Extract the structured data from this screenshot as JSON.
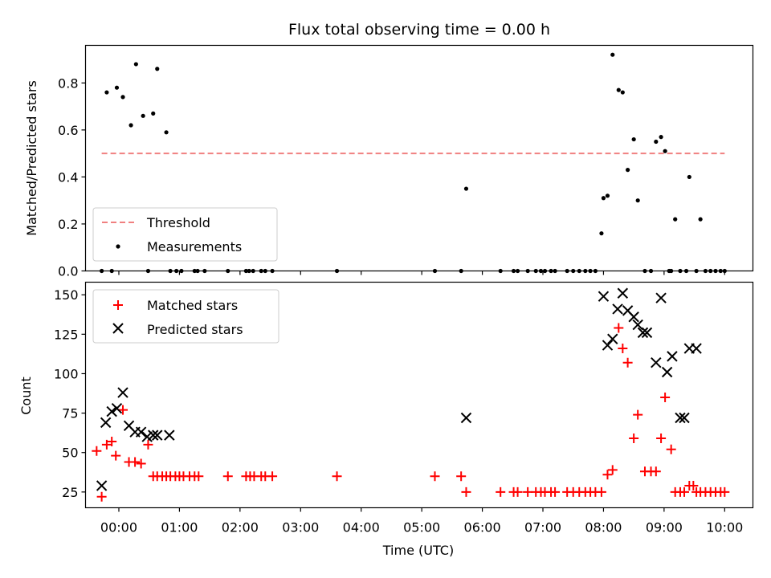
{
  "chart_data": [
    {
      "type": "scatter",
      "title": "Flux total observing time = 0.00 h",
      "xlabel": "",
      "ylabel": "Matched/Predicted stars",
      "xlim": [
        "-0:33",
        "10:28"
      ],
      "ylim": [
        0,
        0.96
      ],
      "yticks": [
        0.0,
        0.2,
        0.4,
        0.6,
        0.8
      ],
      "ytick_labels": [
        "0.0",
        "0.2",
        "0.4",
        "0.6",
        "0.8"
      ],
      "grid": false,
      "legend_position": "lower-left",
      "series": [
        {
          "name": "Threshold",
          "kind": "dashed-line",
          "color": "#f08080",
          "x": [
            "-0:17",
            "10:00"
          ],
          "y": [
            0.5,
            0.5
          ]
        },
        {
          "name": "Measurements",
          "kind": "points",
          "color": "#000000",
          "x": [
            "-0:17",
            "-0:12",
            "-0:07",
            "-0:02",
            "0:04",
            "0:12",
            "0:17",
            "0:24",
            "0:29",
            "0:34",
            "0:38",
            "0:47",
            "0:51",
            "0:57",
            "1:02",
            "1:15",
            "1:18",
            "1:25",
            "1:48",
            "2:06",
            "2:09",
            "2:13",
            "2:21",
            "2:25",
            "2:32",
            "3:36",
            "5:13",
            "5:39",
            "5:44",
            "6:18",
            "6:31",
            "6:35",
            "6:45",
            "6:53",
            "6:58",
            "7:02",
            "7:08",
            "7:12",
            "7:24",
            "7:30",
            "7:36",
            "7:42",
            "7:47",
            "7:52",
            "7:58",
            "8:00",
            "8:04",
            "8:09",
            "8:15",
            "8:19",
            "8:24",
            "8:30",
            "8:34",
            "8:41",
            "8:47",
            "8:52",
            "8:57",
            "9:01",
            "9:05",
            "9:07",
            "9:11",
            "9:16",
            "9:22",
            "9:25",
            "9:32",
            "9:36",
            "9:41",
            "9:46",
            "9:51",
            "9:56",
            "10:00"
          ],
          "y": [
            0.0,
            0.76,
            0.0,
            0.78,
            0.74,
            0.62,
            0.88,
            0.66,
            0.0,
            0.67,
            0.86,
            0.59,
            0.0,
            0.0,
            0.0,
            0.0,
            0.0,
            0.0,
            0.0,
            0.0,
            0.0,
            0.0,
            0.0,
            0.0,
            0.0,
            0.0,
            0.0,
            0.0,
            0.35,
            0.0,
            0.0,
            0.0,
            0.0,
            0.0,
            0.0,
            0.0,
            0.0,
            0.0,
            0.0,
            0.0,
            0.0,
            0.0,
            0.0,
            0.0,
            0.16,
            0.31,
            0.32,
            0.92,
            0.77,
            0.76,
            0.43,
            0.56,
            0.3,
            0.0,
            0.0,
            0.55,
            0.57,
            0.51,
            0.0,
            0.0,
            0.22,
            0.0,
            0.0,
            0.4,
            0.0,
            0.22,
            0.0,
            0.0,
            0.0,
            0.0,
            0.0
          ]
        }
      ]
    },
    {
      "type": "scatter",
      "title": "",
      "xlabel": "Time (UTC)",
      "ylabel": "Count",
      "xlim": [
        "-0:33",
        "10:28"
      ],
      "ylim": [
        15,
        158
      ],
      "yticks": [
        25,
        50,
        75,
        100,
        125,
        150
      ],
      "ytick_labels": [
        "25",
        "50",
        "75",
        "100",
        "125",
        "150"
      ],
      "xticks": [
        "0:00",
        "1:00",
        "2:00",
        "3:00",
        "4:00",
        "5:00",
        "6:00",
        "7:00",
        "8:00",
        "9:00",
        "10:00"
      ],
      "xtick_labels": [
        "00:00",
        "01:00",
        "02:00",
        "03:00",
        "04:00",
        "05:00",
        "06:00",
        "07:00",
        "08:00",
        "09:00",
        "10:00"
      ],
      "grid": false,
      "legend_position": "upper-left",
      "series": [
        {
          "name": "Matched stars",
          "marker": "plus",
          "color": "#ff0000",
          "x": [
            "-0:22",
            "-0:17",
            "-0:12",
            "-0:07",
            "-0:03",
            "0:04",
            "0:10",
            "0:16",
            "0:22",
            "0:29",
            "0:34",
            "0:38",
            "0:43",
            "0:47",
            "0:51",
            "0:56",
            "1:00",
            "1:04",
            "1:10",
            "1:15",
            "1:19",
            "1:48",
            "2:06",
            "2:10",
            "2:14",
            "2:21",
            "2:25",
            "2:32",
            "3:36",
            "5:13",
            "5:39",
            "5:44",
            "6:18",
            "6:31",
            "6:35",
            "6:45",
            "6:53",
            "6:58",
            "7:02",
            "7:08",
            "7:12",
            "7:24",
            "7:30",
            "7:36",
            "7:42",
            "7:47",
            "7:52",
            "7:58",
            "8:04",
            "8:09",
            "8:15",
            "8:19",
            "8:24",
            "8:30",
            "8:34",
            "8:41",
            "8:47",
            "8:52",
            "8:57",
            "9:01",
            "9:07",
            "9:11",
            "9:16",
            "9:20",
            "9:25",
            "9:29",
            "9:32",
            "9:36",
            "9:41",
            "9:46",
            "9:51",
            "9:56",
            "10:00"
          ],
          "y": [
            51,
            22,
            55,
            57,
            48,
            77,
            44,
            44,
            43,
            55,
            35,
            35,
            35,
            35,
            35,
            35,
            35,
            35,
            35,
            35,
            35,
            35,
            35,
            35,
            35,
            35,
            35,
            35,
            35,
            35,
            35,
            25,
            25,
            25,
            25,
            25,
            25,
            25,
            25,
            25,
            25,
            25,
            25,
            25,
            25,
            25,
            25,
            25,
            36,
            39,
            129,
            116,
            107,
            59,
            74,
            38,
            38,
            38,
            59,
            85,
            52,
            25,
            25,
            25,
            29,
            29,
            25,
            25,
            25,
            25,
            25,
            25,
            25
          ]
        },
        {
          "name": "Predicted stars",
          "marker": "x",
          "color": "#000000",
          "x": [
            "-0:17",
            "-0:13",
            "-0:07",
            "-0:02",
            "0:04",
            "0:10",
            "0:16",
            "0:22",
            "0:28",
            "0:34",
            "0:38",
            "0:50",
            "5:44",
            "8:00",
            "8:04",
            "8:09",
            "8:14",
            "8:19",
            "8:24",
            "8:30",
            "8:34",
            "8:39",
            "8:43",
            "8:52",
            "8:57",
            "9:03",
            "9:08",
            "9:16",
            "9:20",
            "9:25",
            "9:32"
          ],
          "y": [
            29,
            69,
            76,
            78,
            88,
            67,
            63,
            63,
            60,
            61,
            61,
            61,
            72,
            149,
            118,
            122,
            141,
            151,
            140,
            136,
            131,
            126,
            126,
            107,
            148,
            101,
            111,
            72,
            72,
            116,
            116
          ]
        }
      ]
    }
  ]
}
